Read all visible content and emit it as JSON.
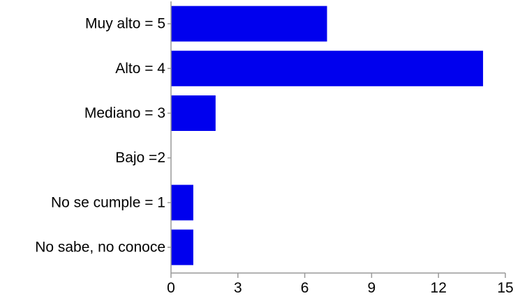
{
  "chart_data": {
    "type": "bar",
    "orientation": "horizontal",
    "categories": [
      "Muy alto = 5",
      "Alto = 4",
      "Mediano = 3",
      "Bajo =2",
      "No se cumple = 1",
      "No sabe, no conoce"
    ],
    "values": [
      7,
      14,
      2,
      0,
      1,
      1
    ],
    "xlim": [
      0,
      15
    ],
    "xticks": [
      "0",
      "3",
      "6",
      "9",
      "12",
      "15"
    ],
    "bar_color": "#0000ee",
    "grid": false,
    "legend": "none"
  }
}
